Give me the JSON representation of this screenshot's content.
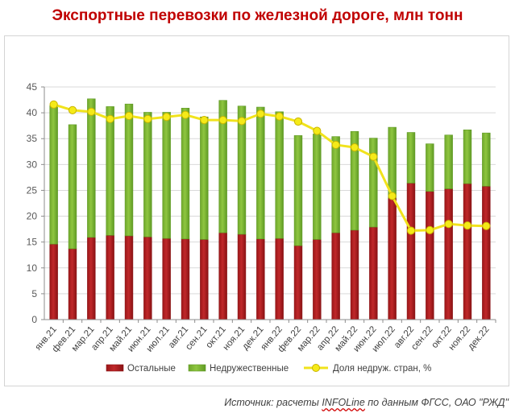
{
  "title": "Экспортные перевозки по железной дороге, млн тонн",
  "source": {
    "prefix": "Источник: расчеты ",
    "link": "INFOLine",
    "suffix": " по данным ФГСС, ОАО \"РЖД\""
  },
  "colors": {
    "others": "#c0282a",
    "unfriendly": "#8fc640",
    "share_line": "#f1e31c",
    "share_marker": "#f5ea18",
    "grid": "#d9d9d9"
  },
  "chart_data": {
    "type": "bar",
    "stacked": true,
    "title": "Экспортные перевозки по железной дороге, млн тонн",
    "xlabel": "",
    "ylabel": "",
    "ylim": [
      0,
      45
    ],
    "yticks": [
      0,
      5,
      10,
      15,
      20,
      25,
      30,
      35,
      40,
      45
    ],
    "legend_position": "bottom",
    "categories": [
      "янв.21",
      "фев.21",
      "мар.21",
      "апр.21",
      "май.21",
      "июн.21",
      "июл.21",
      "авг.21",
      "сен.21",
      "окт.21",
      "ноя.21",
      "дек.21",
      "янв.22",
      "фев.22",
      "мар.22",
      "апр.22",
      "май.22",
      "июн.22",
      "июл.22",
      "авг.22",
      "сен.22",
      "окт.22",
      "ноя.22",
      "дек.22"
    ],
    "series": [
      {
        "name": "Остальные",
        "type": "bar",
        "values": [
          14.6,
          13.7,
          15.9,
          16.3,
          16.2,
          16.0,
          15.7,
          15.6,
          15.5,
          16.8,
          16.5,
          15.6,
          15.7,
          14.3,
          15.5,
          16.8,
          17.3,
          17.9,
          23.5,
          26.4,
          24.8,
          25.3,
          26.3,
          25.8
        ]
      },
      {
        "name": "Недружественные",
        "type": "bar",
        "values": [
          26.8,
          24.0,
          26.8,
          24.9,
          25.5,
          24.1,
          24.4,
          25.3,
          23.7,
          25.6,
          24.8,
          25.5,
          24.5,
          21.3,
          20.4,
          18.6,
          19.1,
          17.2,
          13.7,
          9.8,
          9.2,
          10.4,
          10.4,
          10.3
        ]
      },
      {
        "name": "Доля недруж. стран, %",
        "type": "line",
        "values": [
          41.6,
          40.5,
          40.2,
          38.8,
          39.4,
          38.8,
          39.2,
          39.6,
          38.6,
          38.6,
          38.4,
          39.8,
          39.3,
          38.3,
          36.5,
          33.8,
          33.3,
          31.5,
          23.9,
          17.2,
          17.3,
          18.5,
          18.2,
          18.1
        ]
      }
    ]
  }
}
